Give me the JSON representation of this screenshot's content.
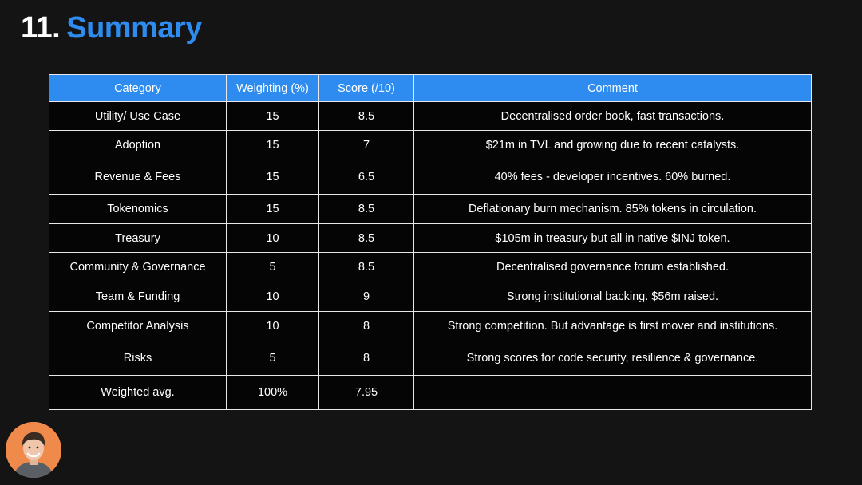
{
  "slide": {
    "number": "11.",
    "title": "Summary"
  },
  "table": {
    "headers": [
      "Category",
      "Weighting (%)",
      "Score (/10)",
      "Comment"
    ],
    "rows": [
      [
        "Utility/ Use Case",
        "15",
        "8.5",
        "Decentralised order book, fast transactions."
      ],
      [
        "Adoption",
        "15",
        "7",
        "$21m in TVL and growing due to recent catalysts."
      ],
      [
        "Revenue & Fees",
        "15",
        "6.5",
        "40% fees - developer incentives. 60% burned."
      ],
      [
        "Tokenomics",
        "15",
        "8.5",
        "Deflationary burn mechanism. 85% tokens in circulation."
      ],
      [
        "Treasury",
        "10",
        "8.5",
        "$105m in treasury but all in native $INJ token."
      ],
      [
        "Community & Governance",
        "5",
        "8.5",
        "Decentralised governance forum established."
      ],
      [
        "Team & Funding",
        "10",
        "9",
        "Strong institutional backing. $56m raised."
      ],
      [
        "Competitor Analysis",
        "10",
        "8",
        "Strong competition. But advantage is first mover and institutions."
      ],
      [
        "Risks",
        "5",
        "8",
        "Strong scores for code security, resilience & governance."
      ],
      [
        "Weighted avg.",
        "100%",
        "7.95",
        ""
      ]
    ]
  },
  "colors": {
    "accent": "#2e8cf0",
    "background": "#141414",
    "table_bg": "#050505",
    "avatar_bg": "#f08a4b"
  },
  "presenter": {
    "icon": "presenter-avatar"
  }
}
